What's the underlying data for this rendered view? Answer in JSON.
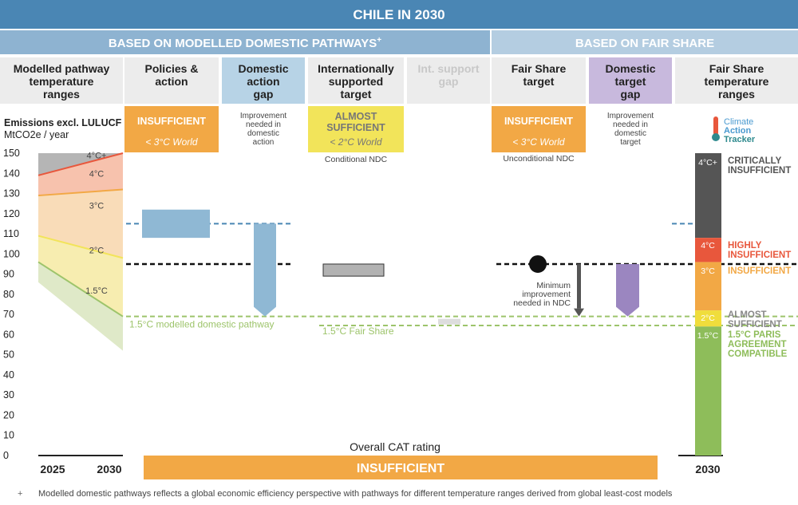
{
  "header": {
    "title": "CHILE IN 2030",
    "left_section": "BASED ON MODELLED DOMESTIC PATHWAYS",
    "left_section_mark": "+",
    "right_section": "BASED ON FAIR SHARE"
  },
  "columns": {
    "modelled": [
      "Modelled pathway",
      "temperature",
      "ranges"
    ],
    "policies": [
      "Policies &",
      "action"
    ],
    "domestic_gap": [
      "Domestic",
      "action",
      "gap"
    ],
    "intl_target": [
      "Internationally",
      "supported",
      "target"
    ],
    "intl_gap": [
      "Int. support",
      "gap"
    ],
    "fair_target": [
      "Fair Share",
      "target"
    ],
    "dom_target_gap": [
      "Domestic",
      "target",
      "gap"
    ],
    "fs_ranges": [
      "Fair Share",
      "temperature",
      "ranges"
    ]
  },
  "ratings": {
    "policies": {
      "label": "INSUFFICIENT",
      "sub": "< 3°C World"
    },
    "intl_target": {
      "label_lines": [
        "ALMOST",
        "SUFFICIENT"
      ],
      "sub": "< 2°C World",
      "note": "Conditional NDC"
    },
    "fair_target": {
      "label": "INSUFFICIENT",
      "sub": "< 3°C World",
      "note": "Unconditional NDC"
    }
  },
  "notes": {
    "domestic_gap": [
      "Improvement",
      "needed in",
      "domestic",
      "action"
    ],
    "dom_target_gap": [
      "Improvement",
      "needed in",
      "domestic",
      "target"
    ],
    "min_improvement": [
      "Minimum",
      "improvement",
      "needed in NDC"
    ],
    "modelled_pathway_line": "1.5°C modelled domestic pathway",
    "fair_share_line": "1.5°C Fair Share"
  },
  "logo": {
    "lines": [
      "Climate",
      "Action",
      "Tracker"
    ]
  },
  "fs_legend": [
    {
      "level": "4°C+",
      "lines": [
        "CRITICALLY",
        "INSUFFICIENT"
      ],
      "color": "#555555"
    },
    {
      "level": "4°C",
      "lines": [
        "HIGHLY",
        "INSUFFICIENT"
      ],
      "color": "#e8573c"
    },
    {
      "level": "3°C",
      "lines": [
        "INSUFFICIENT"
      ],
      "color": "#f2a845"
    },
    {
      "level": "2°C",
      "lines": [
        "ALMOST",
        "SUFFICIENT"
      ],
      "color": "#f0dd3c"
    },
    {
      "level": "1.5°C",
      "lines": [
        "1.5°C PARIS",
        "AGREEMENT",
        "COMPATIBLE"
      ],
      "color": "#8ebd5a"
    }
  ],
  "overall": {
    "caption": "Overall CAT rating",
    "rating": "INSUFFICIENT"
  },
  "footnote": {
    "mark": "+",
    "text": "Modelled domestic pathways reflects a global economic efficiency perspective with pathways for different temperature ranges derived from global least-cost models"
  },
  "colors": {
    "header_blue": "#4a86b4",
    "section_left": "#8eb3d1",
    "section_right": "#b4cde1",
    "col_bg": "#ececec",
    "insufficient": "#f2a845",
    "almost_sufficient": "#f2e45a",
    "gap_blue": "#8fb8d4",
    "target_gap_purple": "#9b86c0",
    "pathway_green": "#9dc46b"
  },
  "chart_data": {
    "type": "area",
    "ylabel": [
      "Emissions excl. LULUCF",
      "MtCO2e / year"
    ],
    "ylim": [
      0,
      150
    ],
    "yticks": [
      0,
      10,
      20,
      30,
      40,
      50,
      60,
      70,
      80,
      90,
      100,
      110,
      120,
      130,
      140,
      150
    ],
    "x": [
      "2025",
      "2030"
    ],
    "xlabel_right": "2030",
    "boundaries": [
      {
        "name": "4°C+",
        "values": [
          150,
          150
        ]
      },
      {
        "name": "4°C",
        "values": [
          139,
          150
        ]
      },
      {
        "name": "3°C",
        "values": [
          129,
          132
        ]
      },
      {
        "name": "2°C",
        "values": [
          109,
          98
        ]
      },
      {
        "name": "1.5°C",
        "values": [
          96,
          69
        ]
      },
      {
        "name": "1.5°C low",
        "values": [
          86,
          52
        ]
      }
    ],
    "range_labels": [
      "4°C+",
      "4°C",
      "3°C",
      "2°C",
      "1.5°C"
    ],
    "policies_range": [
      108,
      122
    ],
    "domestic_action_gap": [
      69,
      115
    ],
    "intl_target_range": [
      89,
      95
    ],
    "ndc_target": 95,
    "min_improvement_arrow": [
      69,
      95
    ],
    "domestic_target_gap": [
      69,
      95
    ],
    "pathway_1_5": 69,
    "fair_share_1_5": 64.5,
    "fs_bands": [
      {
        "level": "4°C+",
        "from": 108,
        "to": 150
      },
      {
        "level": "4°C",
        "from": 96,
        "to": 108
      },
      {
        "level": "3°C",
        "from": 72,
        "to": 96
      },
      {
        "level": "2°C",
        "from": 64,
        "to": 72
      },
      {
        "level": "1.5°C",
        "from": 0,
        "to": 64
      }
    ]
  }
}
